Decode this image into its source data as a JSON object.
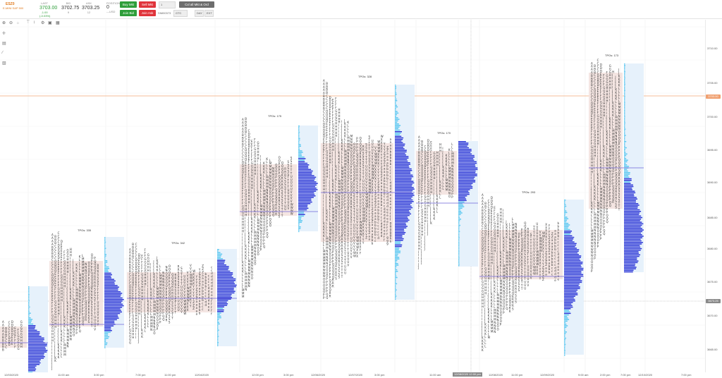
{
  "header": {
    "symbol": "ESZ0",
    "symbol_sub": "E-MINI S&P 500",
    "last": {
      "label": "LAST",
      "value": "3703.00",
      "change": "-1.00 (-0.03%)"
    },
    "bid": {
      "label": "BID",
      "value": "3702.75",
      "size": "9"
    },
    "ask": {
      "label": "ASK",
      "value": "3703.25",
      "size": "12"
    },
    "position": {
      "label": "POSITION",
      "value": "0",
      "pnl": "---USD"
    },
    "buy_mkt": "Buy Mkt",
    "sell_mkt": "Sell Mkt",
    "qty": "1",
    "cxl_all": "Cxl all Mkt & Ord",
    "join_bid": "Join Bid",
    "join_ask": "Join Ask",
    "account": "SIM00373",
    "tif": "GTC",
    "day": "DAY",
    "ext": "EXT"
  },
  "colors": {
    "value_area": "#f3e2df",
    "volume_bar": "#2b35d6",
    "volume_bar_light": "#5ac8f0",
    "volume_bg": "#e6f1fb",
    "poc_line": "#6e64d8",
    "price_line": "#f0a878",
    "cross_line": "#8a8a8a",
    "highlight": "#d0e8d0"
  },
  "y_axis": {
    "labels": [
      "3710.00",
      "3705.00",
      "3700.00",
      "3695.00",
      "3690.00",
      "3685.00",
      "3680.00",
      "3675.00",
      "3670.00",
      "3665.00"
    ],
    "current_price": "3703.00",
    "cross_price": "3673.25"
  },
  "x_axis": {
    "labels": [
      "12/03/2020",
      "11:00 am",
      "3:00 pm",
      "7:00 pm",
      "11:00 pm",
      "12/04/2020",
      "12:00 pm",
      "3:00 pm",
      "12/06/2020",
      "12/07/2020",
      "3:00 pm",
      "11:00 am",
      "12/08/2020",
      "11:00 pm",
      "12/09/2020",
      "9:00 am",
      "2:00 pm",
      "7:00 pm",
      "12/10/2020",
      "7:00 pm"
    ],
    "cursor_time": "12/08/2020 12:00 pm"
  },
  "profiles": [
    {
      "tpo_label": ""
    },
    {
      "tpo_label": "TPOs: 335"
    },
    {
      "tpo_label": "TPOs: 342"
    },
    {
      "tpo_label": "TPOs: 175"
    },
    {
      "tpo_label": "TPOs: 328"
    },
    {
      "tpo_label": "TPOs: 170"
    },
    {
      "tpo_label": "TPOs: 293"
    },
    {
      "tpo_label": "TPOs: 173"
    }
  ]
}
